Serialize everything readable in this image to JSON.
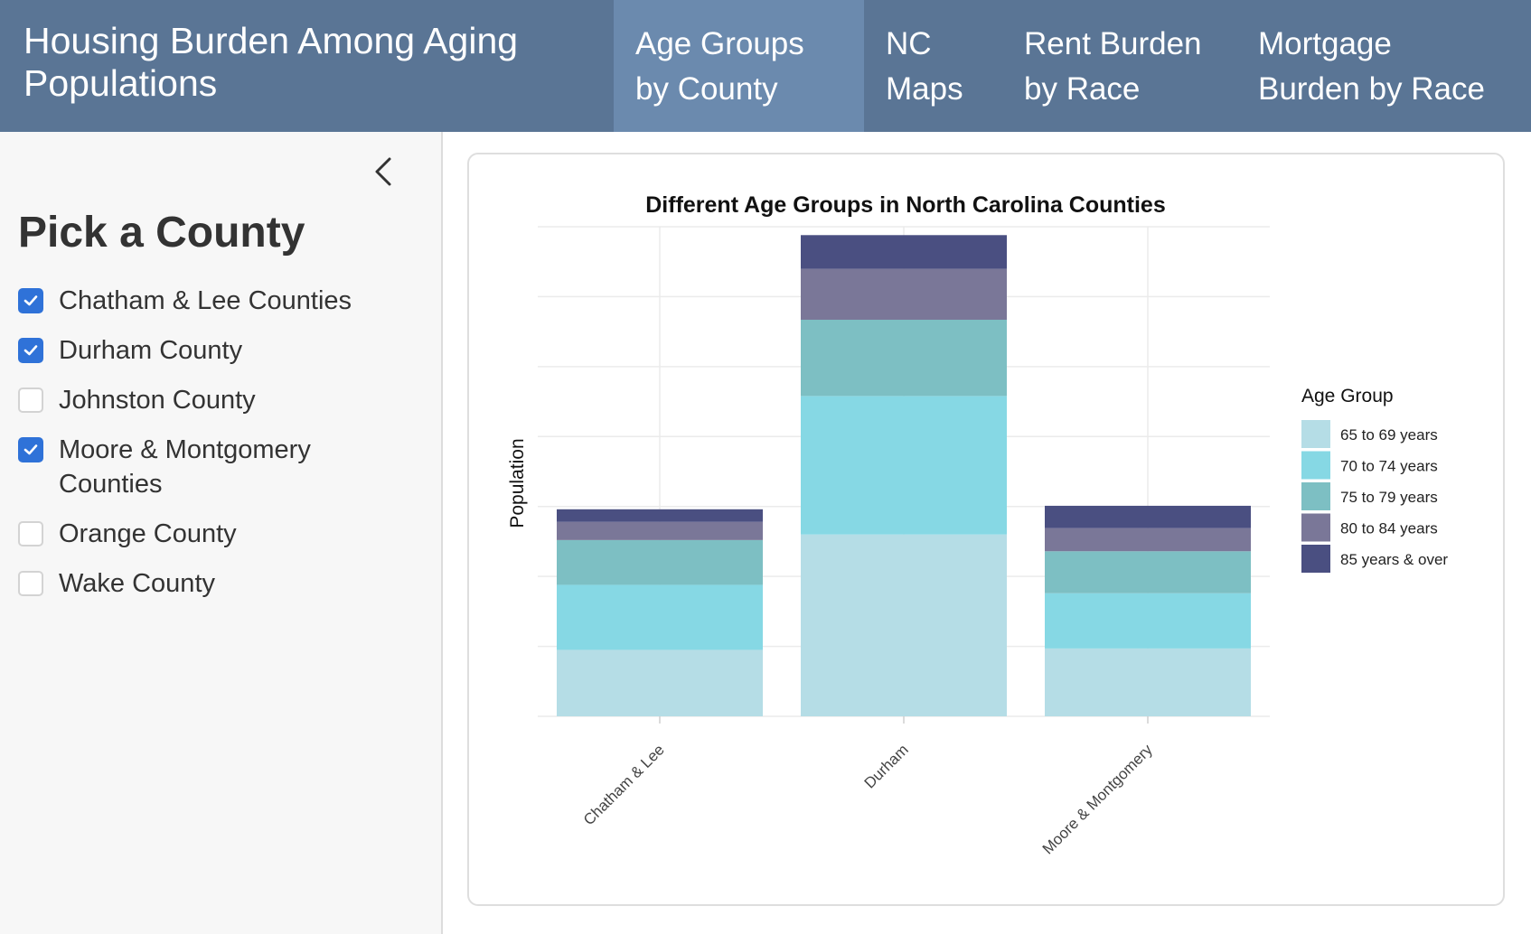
{
  "header": {
    "title": "Housing Burden Among Aging Populations",
    "tabs": [
      {
        "label": "Age Groups by County",
        "active": true
      },
      {
        "label": "NC Maps",
        "active": false
      },
      {
        "label": "Rent Burden by Race",
        "active": false
      },
      {
        "label": "Mortgage Burden by Race",
        "active": false
      }
    ]
  },
  "sidebar": {
    "collapse_icon": "chevron-left-icon",
    "title": "Pick a County",
    "options": [
      {
        "label": "Chatham & Lee Counties",
        "checked": true
      },
      {
        "label": "Durham County",
        "checked": true
      },
      {
        "label": "Johnston County",
        "checked": false
      },
      {
        "label": "Moore & Montgomery Counties",
        "checked": true
      },
      {
        "label": "Orange County",
        "checked": false
      },
      {
        "label": "Wake County",
        "checked": false
      }
    ]
  },
  "colors": {
    "navbar": "#5a7595",
    "active_tab": "#6b8aae",
    "checkbox": "#2f72d8",
    "series": [
      "#b5dde6",
      "#86d8e4",
      "#7dbfc3",
      "#7a7798",
      "#4a4f81"
    ]
  },
  "chart_data": {
    "type": "bar",
    "stacked": true,
    "title": "Different Age Groups in North Carolina Counties",
    "xlabel": "",
    "ylabel": "Population",
    "y_tick_labels_shown": false,
    "ylim": [
      0,
      7000
    ],
    "grid": true,
    "legend_title": "Age Group",
    "legend_position": "right",
    "categories": [
      "Chatham & Lee",
      "Durham",
      "Moore & Montgomery"
    ],
    "series": [
      {
        "name": "65 to 69 years",
        "values": [
          950,
          2600,
          970
        ]
      },
      {
        "name": "70 to 74 years",
        "values": [
          930,
          1980,
          790
        ]
      },
      {
        "name": "75 to 79 years",
        "values": [
          640,
          1090,
          600
        ]
      },
      {
        "name": "80 to 84 years",
        "values": [
          260,
          730,
          330
        ]
      },
      {
        "name": "85 years & over",
        "values": [
          180,
          480,
          320
        ]
      }
    ]
  }
}
